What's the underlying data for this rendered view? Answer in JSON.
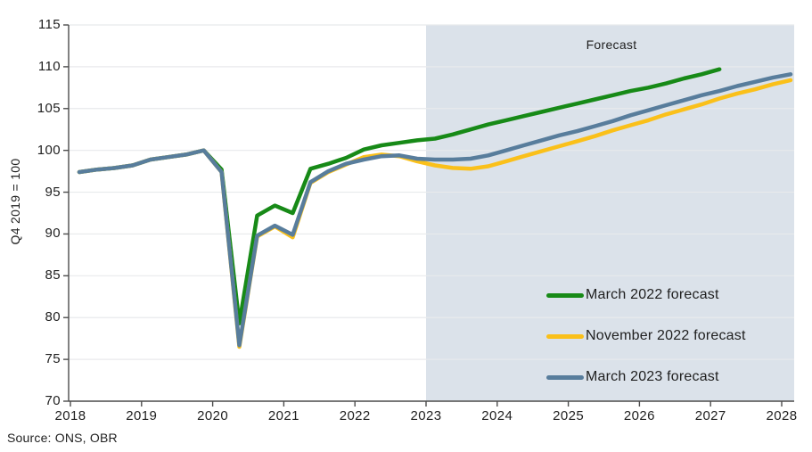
{
  "chart": {
    "source_note": "Source: ONS, OBR"
  },
  "colors": {
    "axis": "#4c4c4c",
    "grid": "#e8eaec",
    "text": "#1f1f1f",
    "background": "#ffffff"
  },
  "chart_data": {
    "type": "line",
    "title": "",
    "xlabel": "",
    "ylabel": "Q4 2019 = 100",
    "ylim": [
      70,
      115
    ],
    "ytick_step": 5,
    "xticks": [
      2018,
      2019,
      2020,
      2021,
      2022,
      2023,
      2024,
      2025,
      2026,
      2027,
      2028
    ],
    "x_start": 2018.125,
    "x_step": 0.25,
    "grid": true,
    "legend_position": "inside-right",
    "forecast_region": {
      "start": 2023,
      "label": "Forecast",
      "fill": "#dbe2ea"
    },
    "series": [
      {
        "name": "March 2022 forecast",
        "color": "#178a17",
        "values": [
          97.4,
          97.7,
          97.9,
          98.2,
          98.9,
          99.2,
          99.5,
          100.0,
          97.7,
          79.3,
          92.2,
          93.4,
          92.5,
          97.8,
          98.4,
          99.1,
          100.1,
          100.6,
          100.9,
          101.2,
          101.4,
          101.9,
          102.5,
          103.1,
          103.6,
          104.1,
          104.6,
          105.1,
          105.6,
          106.1,
          106.6,
          107.1,
          107.5,
          108.0,
          108.6,
          109.1,
          109.7
        ]
      },
      {
        "name": "November 2022 forecast",
        "color": "#fac01a",
        "values": [
          97.4,
          97.7,
          97.9,
          98.2,
          98.9,
          99.2,
          99.5,
          100.0,
          97.4,
          76.5,
          89.7,
          90.9,
          89.6,
          96.1,
          97.4,
          98.3,
          99.2,
          99.5,
          99.3,
          98.7,
          98.2,
          97.9,
          97.8,
          98.1,
          98.7,
          99.3,
          99.9,
          100.5,
          101.1,
          101.7,
          102.4,
          103.0,
          103.6,
          104.3,
          104.9,
          105.5,
          106.2,
          106.8,
          107.3,
          107.9,
          108.4
        ]
      },
      {
        "name": "March 2023 forecast",
        "color": "#587d9c",
        "values": [
          97.4,
          97.7,
          97.9,
          98.2,
          98.9,
          99.2,
          99.5,
          100.0,
          97.4,
          76.7,
          89.8,
          91.0,
          89.9,
          96.2,
          97.5,
          98.4,
          98.9,
          99.3,
          99.4,
          99.0,
          98.9,
          98.9,
          99.0,
          99.4,
          100.0,
          100.6,
          101.2,
          101.8,
          102.3,
          102.9,
          103.5,
          104.2,
          104.8,
          105.4,
          106.0,
          106.6,
          107.1,
          107.7,
          108.2,
          108.7,
          109.1
        ]
      }
    ]
  }
}
